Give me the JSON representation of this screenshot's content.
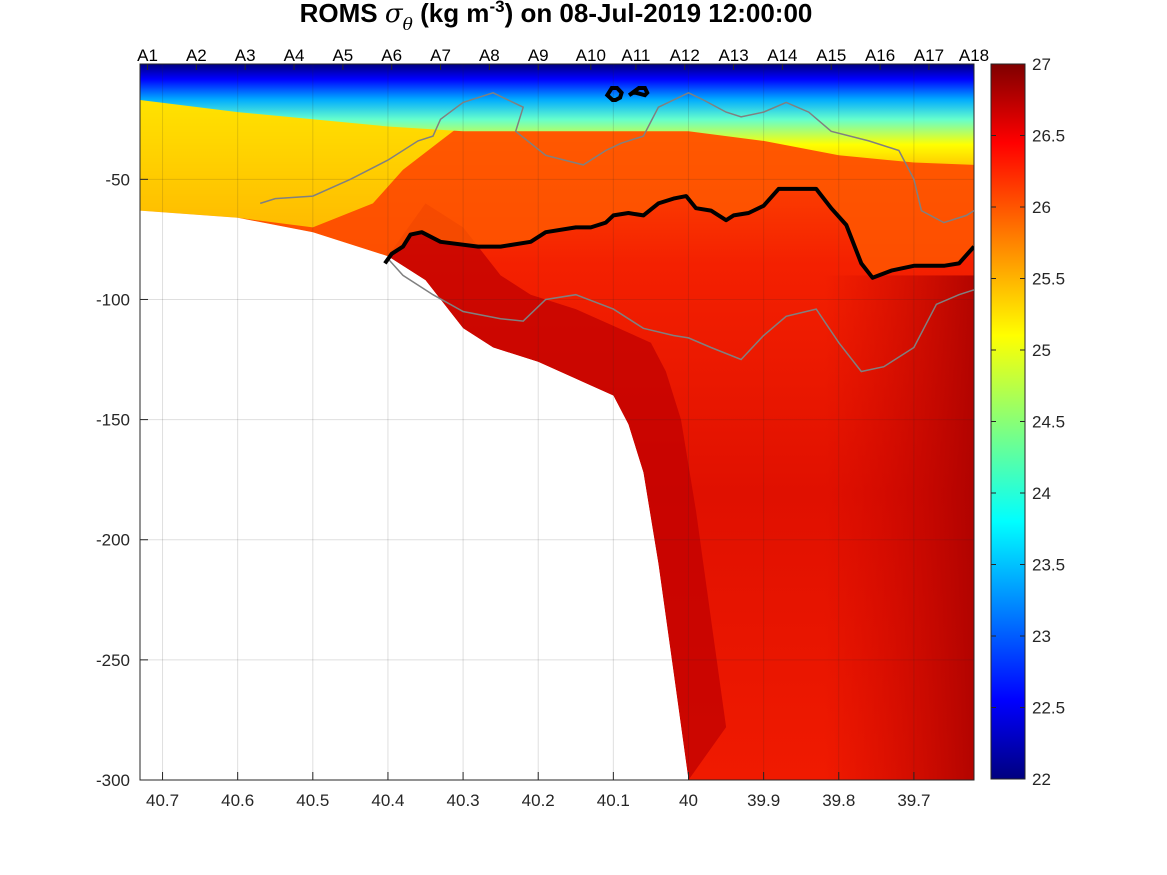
{
  "chart_data": {
    "type": "heatmap",
    "title": {
      "prefix": "ROMS ",
      "symbol": "σ",
      "symbol_sub": "θ",
      "unit_open": " (kg m",
      "unit_sup": "-3",
      "suffix": ") on 08-Jul-2019 12:00:00"
    },
    "x_axis": {
      "range": [
        40.73,
        39.62
      ],
      "ticks": [
        "40.7",
        "40.6",
        "40.5",
        "40.4",
        "40.3",
        "40.2",
        "40.1",
        "40",
        "39.9",
        "39.8",
        "39.7"
      ],
      "reversed": true
    },
    "y_axis": {
      "range": [
        -300,
        -2
      ],
      "ticks": [
        "-50",
        "-100",
        "-150",
        "-200",
        "-250",
        "-300"
      ]
    },
    "stations": [
      {
        "name": "A1",
        "x": 40.72
      },
      {
        "name": "A2",
        "x": 40.655
      },
      {
        "name": "A3",
        "x": 40.59
      },
      {
        "name": "A4",
        "x": 40.525
      },
      {
        "name": "A5",
        "x": 40.46
      },
      {
        "name": "A6",
        "x": 40.395
      },
      {
        "name": "A7",
        "x": 40.33
      },
      {
        "name": "A8",
        "x": 40.265
      },
      {
        "name": "A9",
        "x": 40.2
      },
      {
        "name": "A10",
        "x": 40.13
      },
      {
        "name": "A11",
        "x": 40.07
      },
      {
        "name": "A12",
        "x": 40.005
      },
      {
        "name": "A13",
        "x": 39.94
      },
      {
        "name": "A14",
        "x": 39.875
      },
      {
        "name": "A15",
        "x": 39.81
      },
      {
        "name": "A16",
        "x": 39.745
      },
      {
        "name": "A17",
        "x": 39.68
      },
      {
        "name": "A18",
        "x": 39.62
      }
    ],
    "colorbar": {
      "min": 22,
      "max": 27,
      "ticks": [
        "22",
        "22.5",
        "23",
        "23.5",
        "24",
        "24.5",
        "25",
        "25.5",
        "26",
        "26.5",
        "27"
      ],
      "colormap": "jet"
    },
    "bathymetry": [
      [
        40.73,
        -63
      ],
      [
        40.6,
        -66
      ],
      [
        40.5,
        -72
      ],
      [
        40.4,
        -82
      ],
      [
        40.35,
        -92
      ],
      [
        40.3,
        -112
      ],
      [
        40.26,
        -120
      ],
      [
        40.2,
        -126
      ],
      [
        40.15,
        -133
      ],
      [
        40.1,
        -140
      ],
      [
        40.08,
        -152
      ],
      [
        40.06,
        -172
      ],
      [
        40.04,
        -210
      ],
      [
        40.02,
        -255
      ],
      [
        40.0,
        -300
      ]
    ],
    "mixed_layer_depth": [
      [
        40.73,
        -17
      ],
      [
        40.6,
        -22
      ],
      [
        40.5,
        -25
      ],
      [
        40.4,
        -28
      ],
      [
        40.3,
        -30
      ],
      [
        40.2,
        -30
      ],
      [
        40.1,
        -30
      ],
      [
        40.0,
        -30
      ],
      [
        39.9,
        -34
      ],
      [
        39.8,
        -40
      ],
      [
        39.7,
        -43
      ],
      [
        39.62,
        -44
      ]
    ],
    "contour_26_5": [
      [
        40.404,
        -85
      ],
      [
        40.395,
        -81
      ],
      [
        40.38,
        -78
      ],
      [
        40.37,
        -73
      ],
      [
        40.355,
        -72
      ],
      [
        40.33,
        -76
      ],
      [
        40.28,
        -78
      ],
      [
        40.25,
        -78
      ],
      [
        40.21,
        -76
      ],
      [
        40.19,
        -72
      ],
      [
        40.15,
        -70
      ],
      [
        40.13,
        -70
      ],
      [
        40.11,
        -68
      ],
      [
        40.1,
        -65
      ],
      [
        40.08,
        -64
      ],
      [
        40.06,
        -65
      ],
      [
        40.04,
        -60
      ],
      [
        40.02,
        -58
      ],
      [
        40.003,
        -57
      ],
      [
        39.99,
        -62
      ],
      [
        39.97,
        -63
      ],
      [
        39.95,
        -67
      ],
      [
        39.94,
        -65
      ],
      [
        39.92,
        -64
      ],
      [
        39.9,
        -61
      ],
      [
        39.88,
        -54
      ],
      [
        39.86,
        -54
      ],
      [
        39.83,
        -54
      ],
      [
        39.81,
        -62
      ],
      [
        39.79,
        -69
      ],
      [
        39.77,
        -85
      ],
      [
        39.755,
        -91
      ],
      [
        39.73,
        -88
      ],
      [
        39.7,
        -86
      ],
      [
        39.66,
        -86
      ],
      [
        39.64,
        -85
      ],
      [
        39.62,
        -78
      ]
    ],
    "contour_24_small_left": [
      [
        40.108,
        -15
      ],
      [
        40.101,
        -17
      ],
      [
        40.097,
        -17
      ],
      [
        40.091,
        -16
      ],
      [
        40.089,
        -14
      ],
      [
        40.095,
        -12
      ],
      [
        40.102,
        -12
      ],
      [
        40.108,
        -15
      ]
    ],
    "contour_24_small_right": [
      [
        40.079,
        -15
      ],
      [
        40.074,
        -14
      ],
      [
        40.07,
        -14
      ],
      [
        40.058,
        -15
      ],
      [
        40.055,
        -14
      ],
      [
        40.058,
        -12
      ],
      [
        40.066,
        -12
      ],
      [
        40.079,
        -15
      ]
    ],
    "contour_26_upper": [
      [
        40.57,
        -60
      ],
      [
        40.55,
        -58
      ],
      [
        40.5,
        -57
      ],
      [
        40.45,
        -50
      ],
      [
        40.4,
        -42
      ],
      [
        40.36,
        -34
      ],
      [
        40.34,
        -32
      ],
      [
        40.33,
        -25
      ],
      [
        40.3,
        -18
      ],
      [
        40.26,
        -14
      ],
      [
        40.22,
        -20
      ],
      [
        40.23,
        -30
      ],
      [
        40.19,
        -40
      ],
      [
        40.14,
        -44
      ],
      [
        40.11,
        -38
      ],
      [
        40.09,
        -35
      ],
      [
        40.06,
        -32
      ],
      [
        40.04,
        -20
      ],
      [
        40.0,
        -14
      ],
      [
        39.98,
        -17
      ],
      [
        39.95,
        -22
      ],
      [
        39.93,
        -24
      ],
      [
        39.9,
        -22
      ],
      [
        39.87,
        -18
      ],
      [
        39.84,
        -22
      ],
      [
        39.81,
        -30
      ],
      [
        39.76,
        -34
      ],
      [
        39.72,
        -38
      ],
      [
        39.7,
        -50
      ],
      [
        39.69,
        -63
      ],
      [
        39.66,
        -68
      ],
      [
        39.63,
        -65
      ],
      [
        39.62,
        -63
      ]
    ],
    "contour_26_lower": [
      [
        40.4,
        -83
      ],
      [
        40.38,
        -90
      ],
      [
        40.34,
        -98
      ],
      [
        40.3,
        -105
      ],
      [
        40.25,
        -108
      ],
      [
        40.22,
        -109
      ],
      [
        40.19,
        -100
      ],
      [
        40.15,
        -98
      ],
      [
        40.1,
        -104
      ],
      [
        40.06,
        -112
      ],
      [
        40.02,
        -115
      ],
      [
        40.0,
        -116
      ],
      [
        39.97,
        -120
      ],
      [
        39.93,
        -125
      ],
      [
        39.9,
        -115
      ],
      [
        39.87,
        -107
      ],
      [
        39.83,
        -104
      ],
      [
        39.8,
        -118
      ],
      [
        39.77,
        -130
      ],
      [
        39.74,
        -128
      ],
      [
        39.7,
        -120
      ],
      [
        39.67,
        -102
      ],
      [
        39.64,
        -98
      ],
      [
        39.62,
        -96
      ]
    ]
  }
}
